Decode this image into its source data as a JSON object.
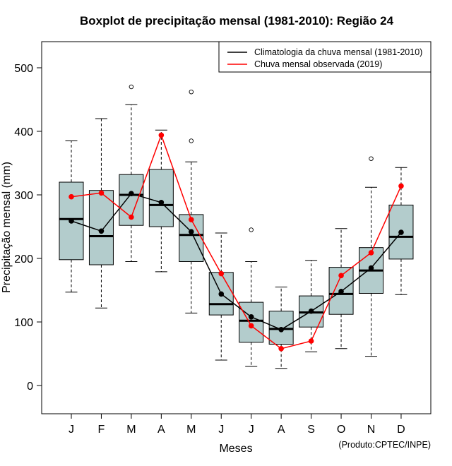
{
  "chart_data": {
    "type": "boxplot",
    "title": "Boxplot de precipitação mensal (1981-2010): Região 24",
    "xlabel": "Meses",
    "ylabel": "Precipitação mensal (mm)",
    "ylim": [
      -45,
      540
    ],
    "yticks": [
      0,
      100,
      200,
      300,
      400,
      500
    ],
    "categories": [
      "J",
      "F",
      "M",
      "A",
      "M",
      "J",
      "J",
      "A",
      "S",
      "O",
      "N",
      "D"
    ],
    "boxes": [
      {
        "whisker_low": 147,
        "q1": 198,
        "median": 262,
        "q3": 320,
        "whisker_high": 385,
        "outliers": []
      },
      {
        "whisker_low": 122,
        "q1": 190,
        "median": 235,
        "q3": 307,
        "whisker_high": 420,
        "outliers": []
      },
      {
        "whisker_low": 195,
        "q1": 252,
        "median": 300,
        "q3": 332,
        "whisker_high": 442,
        "outliers": [
          470
        ]
      },
      {
        "whisker_low": 179,
        "q1": 250,
        "median": 284,
        "q3": 340,
        "whisker_high": 402,
        "outliers": []
      },
      {
        "whisker_low": 114,
        "q1": 195,
        "median": 237,
        "q3": 269,
        "whisker_high": 352,
        "outliers": [
          385,
          462
        ]
      },
      {
        "whisker_low": 40,
        "q1": 111,
        "median": 128,
        "q3": 178,
        "whisker_high": 240,
        "outliers": []
      },
      {
        "whisker_low": 30,
        "q1": 68,
        "median": 102,
        "q3": 131,
        "whisker_high": 195,
        "outliers": [
          245
        ]
      },
      {
        "whisker_low": 27,
        "q1": 65,
        "median": 89,
        "q3": 117,
        "whisker_high": 155,
        "outliers": []
      },
      {
        "whisker_low": 53,
        "q1": 92,
        "median": 115,
        "q3": 141,
        "whisker_high": 197,
        "outliers": []
      },
      {
        "whisker_low": 58,
        "q1": 112,
        "median": 144,
        "q3": 186,
        "whisker_high": 247,
        "outliers": []
      },
      {
        "whisker_low": 46,
        "q1": 145,
        "median": 181,
        "q3": 217,
        "whisker_high": 312,
        "outliers": [
          357
        ]
      },
      {
        "whisker_low": 143,
        "q1": 199,
        "median": 234,
        "q3": 284,
        "whisker_high": 343,
        "outliers": []
      }
    ],
    "series": [
      {
        "name": "Climatologia da chuva mensal (1981-2010)",
        "color": "#000000",
        "values": [
          259,
          243,
          302,
          288,
          242,
          144,
          108,
          88,
          117,
          148,
          185,
          241
        ]
      },
      {
        "name": "Chuva mensal observada (2019)",
        "color": "#ff0000",
        "values": [
          297,
          303,
          265,
          394,
          261,
          176,
          94,
          58,
          70,
          173,
          209,
          314
        ]
      }
    ],
    "legend_position": "top-right",
    "colors": {
      "box_fill": "#b3cccc",
      "climatology": "#000000",
      "observed": "#ff0000"
    }
  },
  "credit": "(Produto:CPTEC/INPE)"
}
